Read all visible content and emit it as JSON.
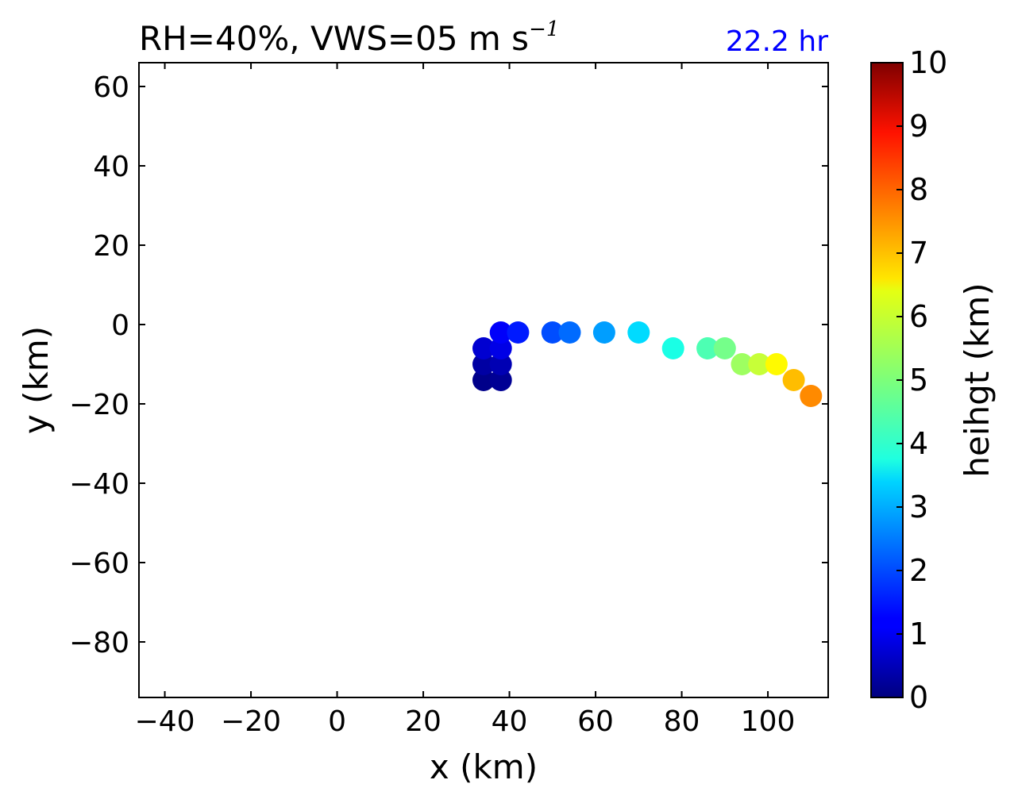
{
  "chart_data": {
    "type": "scatter",
    "title": "RH=40%, VWS=05 m s",
    "title_superscript": "−1",
    "annotation": "22.2 hr",
    "annotation_color": "#0000ff",
    "xlabel": "x (km)",
    "ylabel": "y (km)",
    "xlim": [
      -46,
      114
    ],
    "ylim": [
      -94,
      66
    ],
    "xticks": [
      -40,
      -20,
      0,
      20,
      40,
      60,
      80,
      100
    ],
    "xtick_labels": [
      "−40",
      "−20",
      "0",
      "20",
      "40",
      "60",
      "80",
      "100"
    ],
    "yticks": [
      60,
      40,
      20,
      0,
      -20,
      -40,
      -60,
      -80
    ],
    "ytick_labels": [
      "60",
      "40",
      "20",
      "0",
      "−20",
      "−40",
      "−60",
      "−80"
    ],
    "grid": false,
    "colorbar": {
      "label": "heihgt (km)",
      "colormap": "jet",
      "range": [
        0,
        10
      ],
      "ticks": [
        "0",
        "1",
        "2",
        "3",
        "4",
        "5",
        "6",
        "7",
        "8",
        "9",
        "10"
      ]
    },
    "points": [
      {
        "x": 34,
        "y": -14,
        "height": 0.1
      },
      {
        "x": 38,
        "y": -14,
        "height": 0.2
      },
      {
        "x": 34,
        "y": -10,
        "height": 0.35
      },
      {
        "x": 38,
        "y": -10,
        "height": 0.5
      },
      {
        "x": 34,
        "y": -6,
        "height": 0.8
      },
      {
        "x": 38,
        "y": -6,
        "height": 1.0
      },
      {
        "x": 38,
        "y": -2,
        "height": 1.2
      },
      {
        "x": 42,
        "y": -2,
        "height": 1.5
      },
      {
        "x": 50,
        "y": -2,
        "height": 2.0
      },
      {
        "x": 54,
        "y": -2,
        "height": 2.3
      },
      {
        "x": 62,
        "y": -2,
        "height": 2.8
      },
      {
        "x": 70,
        "y": -2,
        "height": 3.4
      },
      {
        "x": 78,
        "y": -6,
        "height": 4.0
      },
      {
        "x": 86,
        "y": -6,
        "height": 4.5
      },
      {
        "x": 90,
        "y": -6,
        "height": 4.9
      },
      {
        "x": 94,
        "y": -10,
        "height": 5.3
      },
      {
        "x": 98,
        "y": -10,
        "height": 5.7
      },
      {
        "x": 102,
        "y": -10,
        "height": 6.3
      },
      {
        "x": 106,
        "y": -14,
        "height": 6.9
      },
      {
        "x": 110,
        "y": -18,
        "height": 7.4
      }
    ]
  }
}
